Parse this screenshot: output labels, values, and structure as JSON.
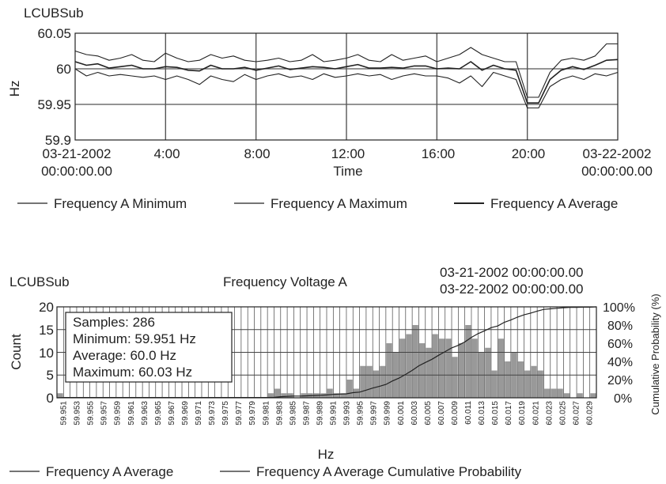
{
  "chart_data": [
    {
      "type": "line",
      "title": "LCUBSub",
      "ylabel": "Hz",
      "xlabel": "Time",
      "ylim": [
        59.9,
        60.05
      ],
      "yticks": [
        "60.05",
        "60",
        "59.95",
        "59.9"
      ],
      "ytick_values": [
        60.05,
        60.0,
        59.95,
        59.9
      ],
      "xlim": [
        0,
        24
      ],
      "xticks": [
        {
          "hour": 0,
          "line1": "03-21-2002",
          "line2": "00:00:00.00"
        },
        {
          "hour": 4,
          "line1": "4:00",
          "line2": ""
        },
        {
          "hour": 8,
          "line1": "8:00",
          "line2": ""
        },
        {
          "hour": 12,
          "line1": "12:00",
          "line2": ""
        },
        {
          "hour": 16,
          "line1": "16:00",
          "line2": ""
        },
        {
          "hour": 20,
          "line1": "20:00",
          "line2": ""
        },
        {
          "hour": 24,
          "line1": "03-22-2002",
          "line2": "00:00:00.00"
        }
      ],
      "grid": true,
      "legend_position": "bottom",
      "x": [
        0,
        0.5,
        1,
        1.5,
        2,
        2.5,
        3,
        3.5,
        4,
        4.5,
        5,
        5.5,
        6,
        6.5,
        7,
        7.5,
        8,
        8.5,
        9,
        9.5,
        10,
        10.5,
        11,
        11.5,
        12,
        12.5,
        13,
        13.5,
        14,
        14.5,
        15,
        15.5,
        16,
        16.5,
        17,
        17.5,
        18,
        18.5,
        19,
        19.5,
        20,
        20.5,
        21,
        21.5,
        22,
        22.5,
        23,
        23.5,
        24
      ],
      "series": [
        {
          "name": "Frequency A Minimum",
          "color": "#222222",
          "values": [
            60.0,
            59.99,
            59.995,
            59.99,
            59.992,
            59.99,
            59.988,
            59.99,
            59.985,
            59.99,
            59.985,
            59.978,
            59.99,
            59.985,
            59.982,
            59.992,
            59.985,
            59.99,
            59.993,
            59.988,
            59.99,
            59.985,
            59.993,
            59.988,
            59.99,
            59.993,
            59.99,
            59.992,
            59.985,
            59.99,
            59.993,
            59.99,
            59.99,
            59.987,
            59.98,
            59.99,
            59.975,
            59.995,
            59.99,
            59.985,
            59.945,
            59.945,
            59.975,
            59.985,
            59.99,
            59.985,
            59.993,
            59.99,
            59.995
          ]
        },
        {
          "name": "Frequency A Maximum",
          "color": "#222222",
          "values": [
            60.025,
            60.02,
            60.018,
            60.012,
            60.015,
            60.02,
            60.012,
            60.01,
            60.022,
            60.015,
            60.01,
            60.012,
            60.02,
            60.015,
            60.018,
            60.012,
            60.01,
            60.012,
            60.015,
            60.01,
            60.012,
            60.02,
            60.01,
            60.012,
            60.015,
            60.02,
            60.012,
            60.01,
            60.02,
            60.012,
            60.015,
            60.018,
            60.01,
            60.015,
            60.02,
            60.03,
            60.02,
            60.015,
            60.01,
            60.01,
            59.96,
            59.96,
            59.995,
            60.012,
            60.015,
            60.012,
            60.018,
            60.035,
            60.035
          ]
        },
        {
          "name": "Frequency A Average",
          "color": "#222222",
          "values": [
            60.01,
            60.005,
            60.007,
            60.001,
            60.003,
            60.005,
            60.0,
            60.0,
            60.003,
            60.002,
            59.998,
            59.997,
            60.005,
            60.0,
            60.0,
            60.002,
            59.998,
            60.001,
            60.004,
            59.999,
            60.001,
            60.003,
            60.002,
            60.0,
            60.003,
            60.006,
            60.001,
            60.001,
            60.002,
            60.001,
            60.004,
            60.004,
            60.0,
            60.001,
            60.0,
            60.01,
            59.998,
            60.005,
            60.0,
            59.998,
            59.952,
            59.952,
            59.985,
            59.998,
            60.003,
            59.999,
            60.005,
            60.012,
            60.013
          ]
        }
      ]
    },
    {
      "type": "bar",
      "title": "LCUBSub",
      "subtitle": "Frequency Voltage A",
      "date_range": [
        "03-21-2002 00:00:00.00",
        "03-22-2002 00:00:00.00"
      ],
      "xlabel": "Hz",
      "ylabel": "Count",
      "y2label": "Cumulative Probability (%)",
      "ylim": [
        0,
        20
      ],
      "yticks": [
        "20",
        "15",
        "10",
        "5",
        "0"
      ],
      "ytick_values": [
        20,
        15,
        10,
        5,
        0
      ],
      "y2lim": [
        0,
        100
      ],
      "y2ticks": [
        "100%",
        "80%",
        "60%",
        "40%",
        "20%",
        "0%"
      ],
      "y2tick_values": [
        100,
        80,
        60,
        40,
        20,
        0
      ],
      "grid": true,
      "legend_position": "bottom",
      "stats": {
        "samples": "Samples: 286",
        "minimum": "Minimum: 59.951 Hz",
        "average": "Average: 60.0 Hz",
        "maximum": "Maximum: 60.03 Hz"
      },
      "tick_labels": [
        "59.951",
        "59.953",
        "59.955",
        "59.957",
        "59.959",
        "59.961",
        "59.963",
        "59.965",
        "59.967",
        "59.969",
        "59.971",
        "59.973",
        "59.975",
        "59.977",
        "59.979",
        "59.981",
        "59.983",
        "59.985",
        "59.987",
        "59.989",
        "59.991",
        "59.993",
        "59.995",
        "59.997",
        "59.999",
        "60.001",
        "60.003",
        "60.005",
        "60.007",
        "60.009",
        "60.011",
        "60.013",
        "60.015",
        "60.017",
        "60.019",
        "60.021",
        "60.023",
        "60.025",
        "60.027",
        "60.029"
      ],
      "bin_values": [
        1,
        0,
        0,
        0,
        0,
        0,
        0,
        0,
        0,
        0,
        0,
        0,
        0,
        0,
        0,
        0,
        0,
        0,
        0,
        0,
        0,
        0,
        0,
        0,
        0,
        0,
        0,
        0,
        0,
        0,
        0,
        0,
        1,
        2,
        1,
        1,
        0,
        1,
        1,
        1,
        1,
        2,
        1,
        1,
        4,
        2,
        7,
        7,
        6,
        7,
        12,
        10,
        13,
        14,
        16,
        12,
        11,
        14,
        13,
        13,
        9,
        12,
        16,
        13,
        10,
        11,
        6,
        13,
        8,
        10,
        8,
        6,
        7,
        6,
        2,
        2,
        2,
        1,
        0,
        1,
        0,
        1
      ],
      "series": [
        {
          "name": "Frequency A Average",
          "color": "#999999"
        },
        {
          "name": "Frequency A Average Cumulative Probability",
          "color": "#222222"
        }
      ]
    }
  ]
}
